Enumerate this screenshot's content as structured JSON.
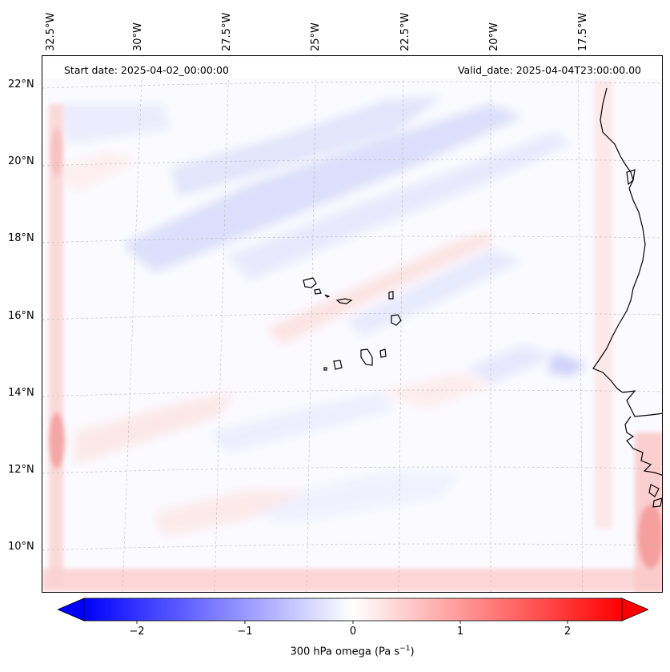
{
  "header": {
    "start_date": "Start date: 2025-04-02_00:00:00",
    "valid_date": "Valid_date: 2025-04-04T23:00:00.00"
  },
  "longitude_labels": [
    "32.5°W",
    "30°W",
    "27.5°W",
    "25°W",
    "22.5°W",
    "20°W",
    "17.5°W"
  ],
  "latitude_labels": [
    "22°N",
    "20°N",
    "18°N",
    "16°N",
    "14°N",
    "12°N",
    "10°N"
  ],
  "colorbar": {
    "label": "300 hPa omega (Pa s",
    "label_exponent": "−1",
    "label_suffix": ")",
    "ticks": [
      "−2",
      "−1",
      "0",
      "1",
      "2"
    ],
    "tick_values": [
      -2,
      -1,
      0,
      1,
      2
    ],
    "range": [
      -2.5,
      2.5
    ],
    "colormap": "bwr",
    "min_color": "#0000ff",
    "mid_color": "#ffffff",
    "max_color": "#ff0000"
  },
  "map": {
    "variable": "300 hPa omega",
    "region": "Cape Verde / West Africa coast",
    "coastline_color": "#000000",
    "gridline_color": "#b0b0b0"
  }
}
